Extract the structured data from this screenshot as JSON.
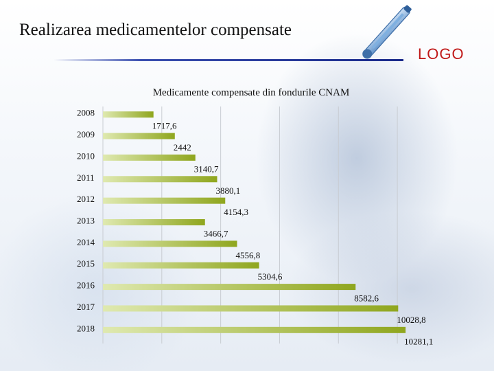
{
  "slide": {
    "title": "Realizarea medicamentelor compensate",
    "logo": "LOGO",
    "decoration_icon": "thermometer-icon"
  },
  "colors": {
    "bar_light": "#dfe9b0",
    "bar_dark": "#8fa61e",
    "logo": "#c01818",
    "title_line": "#2a3a9a"
  },
  "chart_data": {
    "type": "bar",
    "orientation": "horizontal",
    "title": "Medicamente compensate din fondurile CNAM",
    "xlabel": "",
    "ylabel": "",
    "xlim": [
      0,
      11000
    ],
    "grid": true,
    "legend": "none",
    "categories": [
      "2008",
      "2009",
      "2010",
      "2011",
      "2012",
      "2013",
      "2014",
      "2015",
      "2016",
      "2017",
      "2018"
    ],
    "values": [
      1717.6,
      2442,
      3140.7,
      3880.1,
      4154.3,
      3466.7,
      4556.8,
      5304.6,
      8582.6,
      10028.8,
      10281.1
    ],
    "value_labels": [
      "1717,6",
      "2442",
      "3140,7",
      "3880,1",
      "4154,3",
      "3466,7",
      "4556,8",
      "5304,6",
      "8582,6",
      "10028,8",
      "10281,1"
    ]
  }
}
